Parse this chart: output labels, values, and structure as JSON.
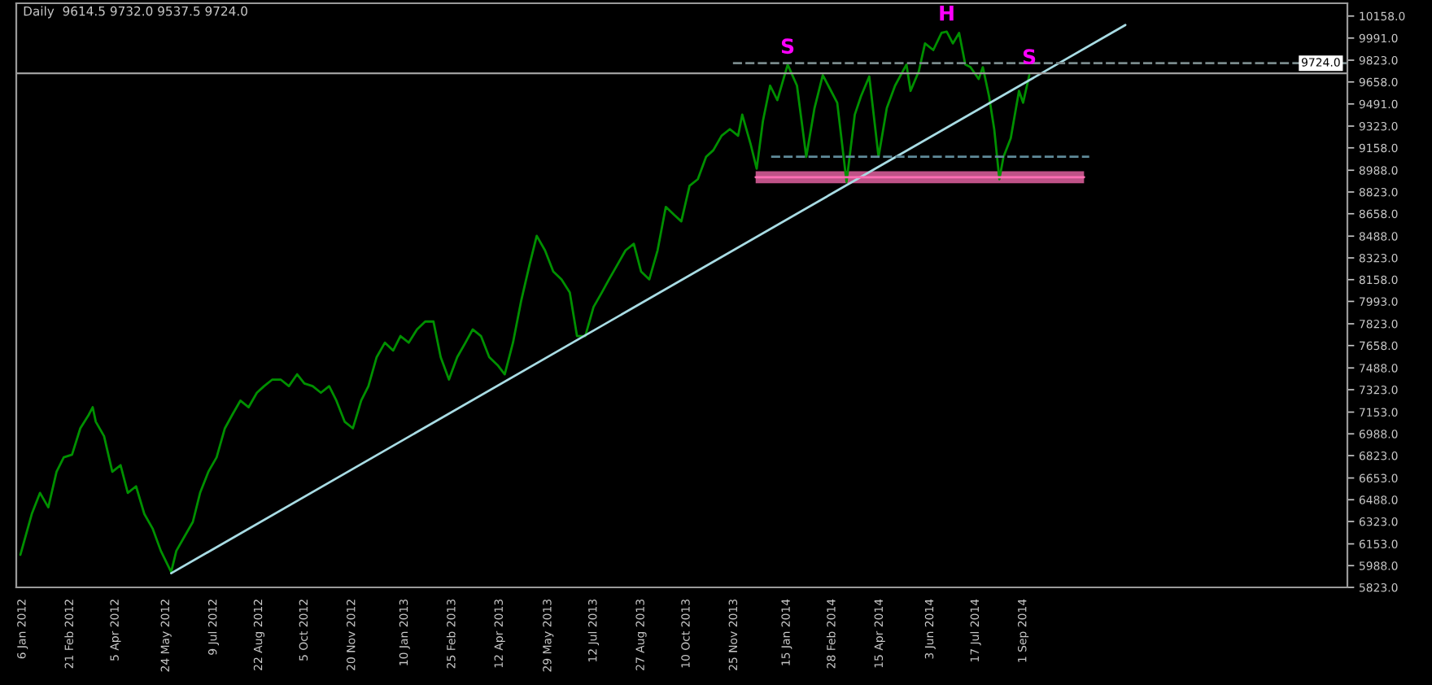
{
  "chart_data": {
    "type": "line",
    "title": "Daily  9614.5 9732.0 9537.5 9724.0",
    "xlim": [
      "2011-12-31",
      "2015-07-12"
    ],
    "ylim": [
      5823,
      10255
    ],
    "xticks": [
      {
        "value": "2012-01-06",
        "label": "6 Jan 2012"
      },
      {
        "value": "2012-02-21",
        "label": "21 Feb 2012"
      },
      {
        "value": "2012-04-05",
        "label": "5 Apr 2012"
      },
      {
        "value": "2012-05-24",
        "label": "24 May 2012"
      },
      {
        "value": "2012-07-09",
        "label": "9 Jul 2012"
      },
      {
        "value": "2012-08-22",
        "label": "22 Aug 2012"
      },
      {
        "value": "2012-10-05",
        "label": "5 Oct 2012"
      },
      {
        "value": "2012-11-20",
        "label": "20 Nov 2012"
      },
      {
        "value": "2013-01-10",
        "label": "10 Jan 2013"
      },
      {
        "value": "2013-02-25",
        "label": "25 Feb 2013"
      },
      {
        "value": "2013-04-12",
        "label": "12 Apr 2013"
      },
      {
        "value": "2013-05-29",
        "label": "29 May 2013"
      },
      {
        "value": "2013-07-12",
        "label": "12 Jul 2013"
      },
      {
        "value": "2013-08-27",
        "label": "27 Aug 2013"
      },
      {
        "value": "2013-10-10",
        "label": "10 Oct 2013"
      },
      {
        "value": "2013-11-25",
        "label": "25 Nov 2013"
      },
      {
        "value": "2014-01-15",
        "label": "15 Jan 2014"
      },
      {
        "value": "2014-02-28",
        "label": "28 Feb 2014"
      },
      {
        "value": "2014-04-15",
        "label": "15 Apr 2014"
      },
      {
        "value": "2014-06-03",
        "label": "3 Jun 2014"
      },
      {
        "value": "2014-07-17",
        "label": "17 Jul 2014"
      },
      {
        "value": "2014-09-01",
        "label": "1 Sep 2014"
      }
    ],
    "yticks": [
      {
        "value": 10158,
        "label": "10158.0"
      },
      {
        "value": 9991,
        "label": "9991.0"
      },
      {
        "value": 9823,
        "label": "9823.0"
      },
      {
        "value": 9658,
        "label": "9658.0"
      },
      {
        "value": 9491,
        "label": "9491.0"
      },
      {
        "value": 9323,
        "label": "9323.0"
      },
      {
        "value": 9158,
        "label": "9158.0"
      },
      {
        "value": 8988,
        "label": "8988.0"
      },
      {
        "value": 8823,
        "label": "8823.0"
      },
      {
        "value": 8658,
        "label": "8658.0"
      },
      {
        "value": 8488,
        "label": "8488.0"
      },
      {
        "value": 8323,
        "label": "8323.0"
      },
      {
        "value": 8158,
        "label": "8158.0"
      },
      {
        "value": 7993,
        "label": "7993.0"
      },
      {
        "value": 7823,
        "label": "7823.0"
      },
      {
        "value": 7658,
        "label": "7658.0"
      },
      {
        "value": 7488,
        "label": "7488.0"
      },
      {
        "value": 7323,
        "label": "7323.0"
      },
      {
        "value": 7153,
        "label": "7153.0"
      },
      {
        "value": 6988,
        "label": "6988.0"
      },
      {
        "value": 6823,
        "label": "6823.0"
      },
      {
        "value": 6653,
        "label": "6653.0"
      },
      {
        "value": 6488,
        "label": "6488.0"
      },
      {
        "value": 6323,
        "label": "6323.0"
      },
      {
        "value": 6153,
        "label": "6153.0"
      },
      {
        "value": 5988,
        "label": "5988.0"
      },
      {
        "value": 5823,
        "label": "5823.0"
      }
    ],
    "series": [
      {
        "color": "#009000",
        "x": [
          "2012-01-04",
          "2012-01-15",
          "2012-01-23",
          "2012-01-31",
          "2012-02-08",
          "2012-02-15",
          "2012-02-23",
          "2012-03-02",
          "2012-03-10",
          "2012-03-14",
          "2012-03-17",
          "2012-03-25",
          "2012-04-02",
          "2012-04-10",
          "2012-04-17",
          "2012-04-25",
          "2012-05-03",
          "2012-05-11",
          "2012-05-19",
          "2012-05-29",
          "2012-06-03",
          "2012-06-11",
          "2012-06-19",
          "2012-06-26",
          "2012-07-04",
          "2012-07-12",
          "2012-07-20",
          "2012-07-27",
          "2012-08-04",
          "2012-08-12",
          "2012-08-20",
          "2012-08-27",
          "2012-09-04",
          "2012-09-12",
          "2012-09-20",
          "2012-09-28",
          "2012-10-05",
          "2012-10-13",
          "2012-10-21",
          "2012-10-29",
          "2012-11-05",
          "2012-11-13",
          "2012-11-21",
          "2012-11-29",
          "2012-12-06",
          "2012-12-14",
          "2012-12-22",
          "2012-12-30",
          "2013-01-06",
          "2013-01-14",
          "2013-01-22",
          "2013-01-30",
          "2013-02-07",
          "2013-02-14",
          "2013-02-22",
          "2013-03-02",
          "2013-03-10",
          "2013-03-17",
          "2013-03-25",
          "2013-04-02",
          "2013-04-10",
          "2013-04-17",
          "2013-04-25",
          "2013-05-03",
          "2013-05-11",
          "2013-05-18",
          "2013-05-26",
          "2013-06-03",
          "2013-06-11",
          "2013-06-19",
          "2013-06-26",
          "2013-07-04",
          "2013-07-12",
          "2013-07-20",
          "2013-07-27",
          "2013-08-04",
          "2013-08-12",
          "2013-08-20",
          "2013-08-27",
          "2013-09-04",
          "2013-09-12",
          "2013-09-20",
          "2013-09-28",
          "2013-10-05",
          "2013-10-13",
          "2013-10-21",
          "2013-10-29",
          "2013-11-05",
          "2013-11-13",
          "2013-11-21",
          "2013-11-29",
          "2013-12-03",
          "2013-12-11",
          "2013-12-17",
          "2013-12-23",
          "2013-12-30",
          "2014-01-06",
          "2014-01-16",
          "2014-01-25",
          "2014-02-03",
          "2014-02-11",
          "2014-02-19",
          "2014-02-27",
          "2014-03-05",
          "2014-03-14",
          "2014-03-22",
          "2014-03-28",
          "2014-04-05",
          "2014-04-14",
          "2014-04-22",
          "2014-04-30",
          "2014-05-11",
          "2014-05-15",
          "2014-05-23",
          "2014-05-29",
          "2014-06-06",
          "2014-06-14",
          "2014-06-19",
          "2014-06-25",
          "2014-07-01",
          "2014-07-07",
          "2014-07-12",
          "2014-07-20",
          "2014-07-24",
          "2014-07-30",
          "2014-08-04",
          "2014-08-09",
          "2014-08-13",
          "2014-08-20",
          "2014-08-28",
          "2014-09-01",
          "2014-09-07"
        ],
        "values": [
          6070,
          6380,
          6540,
          6430,
          6700,
          6810,
          6830,
          7030,
          7130,
          7190,
          7080,
          6970,
          6700,
          6750,
          6540,
          6590,
          6380,
          6270,
          6100,
          5940,
          6100,
          6210,
          6320,
          6540,
          6700,
          6810,
          7030,
          7130,
          7240,
          7190,
          7300,
          7350,
          7400,
          7400,
          7350,
          7440,
          7370,
          7350,
          7300,
          7350,
          7240,
          7080,
          7030,
          7240,
          7350,
          7570,
          7680,
          7620,
          7730,
          7680,
          7780,
          7840,
          7840,
          7570,
          7400,
          7570,
          7680,
          7780,
          7730,
          7570,
          7510,
          7440,
          7680,
          8000,
          8270,
          8490,
          8380,
          8220,
          8160,
          8060,
          7730,
          7730,
          7950,
          8060,
          8160,
          8270,
          8380,
          8430,
          8220,
          8160,
          8380,
          8710,
          8650,
          8600,
          8870,
          8920,
          9090,
          9140,
          9250,
          9300,
          9250,
          9410,
          9190,
          9000,
          9360,
          9630,
          9520,
          9790,
          9630,
          9090,
          9460,
          9710,
          9590,
          9500,
          8900,
          9410,
          9550,
          9700,
          9090,
          9460,
          9630,
          9790,
          9590,
          9740,
          9950,
          9900,
          10030,
          10040,
          9950,
          10030,
          9790,
          9770,
          9680,
          9770,
          9550,
          9300,
          8920,
          9090,
          9230,
          9590,
          9500,
          9710
        ]
      },
      {
        "type": "line",
        "color": "#a8dce4",
        "x": [
          "2012-05-29",
          "2014-12-09"
        ],
        "values": [
          5930,
          10090
        ]
      },
      {
        "type": "line",
        "color": "#7a8a8c",
        "line_style": "dashed",
        "x": [
          "2013-11-24",
          "2015-07-12"
        ],
        "values": [
          9800,
          9800
        ]
      },
      {
        "type": "line",
        "color": "#5f8a99",
        "line_style": "dashed",
        "x": [
          "2013-12-31",
          "2014-11-04"
        ],
        "values": [
          9090,
          9090
        ]
      },
      {
        "type": "line",
        "color": "#ff6eb4",
        "x": [
          "2013-12-16",
          "2014-10-30"
        ],
        "values": [
          8935,
          8935
        ],
        "lower": [
          8890,
          8890
        ],
        "upper": [
          8980,
          8980
        ]
      }
    ],
    "ref_lines": [
      {
        "axis": "y",
        "value": 9724,
        "label": "9724.0",
        "color": "#a0a0a0"
      }
    ],
    "annotations": [
      {
        "text": "S",
        "x": "2014-01-16",
        "y": 9790
      },
      {
        "text": "H",
        "x": "2014-06-19",
        "y": 10040
      },
      {
        "text": "S",
        "x": "2014-09-07",
        "y": 9710
      }
    ]
  }
}
